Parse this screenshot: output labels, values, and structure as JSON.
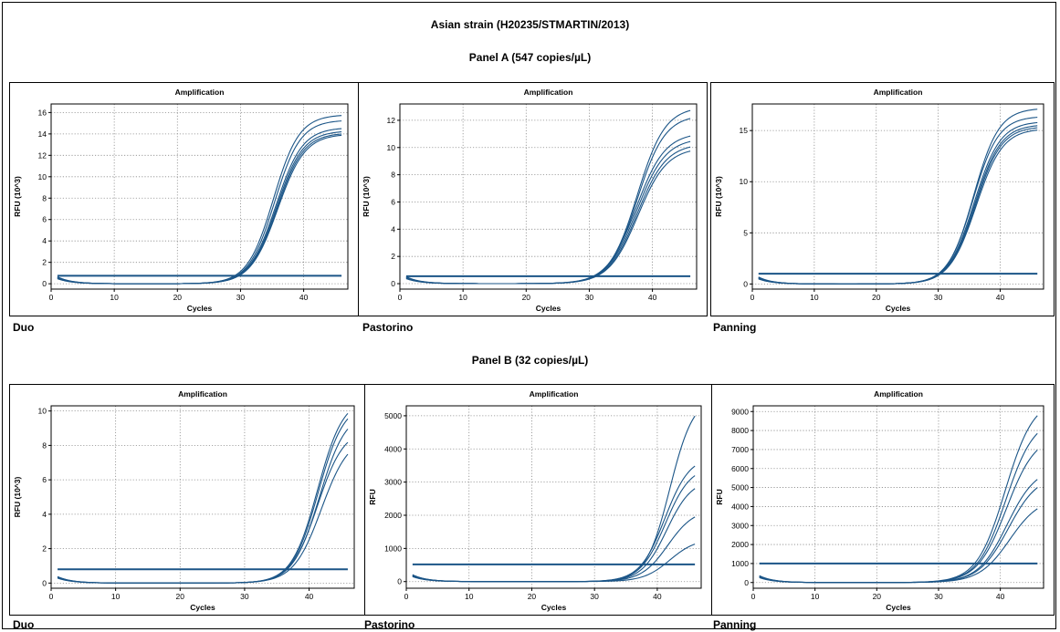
{
  "figure": {
    "title": "Asian strain (H20235/STMARTIN/2013)",
    "panel_a_title": "Panel A (547 copies/µL)",
    "panel_b_title": "Panel B (32 copies/µL)"
  },
  "chart_data": [
    {
      "type": "line",
      "panel": "A",
      "assay": "Duo",
      "title": "Amplification",
      "xlabel": "Cycles",
      "ylabel": "RFU (10^3)",
      "xlim": [
        0,
        47
      ],
      "ylim": [
        -0.5,
        16.8
      ],
      "xticks": [
        0,
        10,
        20,
        30,
        40
      ],
      "yticks": [
        0,
        2,
        4,
        6,
        8,
        10,
        12,
        14,
        16
      ],
      "grid": true,
      "threshold": 0.75,
      "curves": [
        {
          "plateau": 15.8,
          "midpoint": 35.2,
          "slope": 2.05
        },
        {
          "plateau": 15.3,
          "midpoint": 35.4,
          "slope": 2.05
        },
        {
          "plateau": 14.6,
          "midpoint": 35.6,
          "slope": 2.1
        },
        {
          "plateau": 14.3,
          "midpoint": 35.7,
          "slope": 2.1
        },
        {
          "plateau": 14.1,
          "midpoint": 35.8,
          "slope": 2.1
        },
        {
          "plateau": 14.0,
          "midpoint": 35.9,
          "slope": 2.15
        }
      ]
    },
    {
      "type": "line",
      "panel": "A",
      "assay": "Pastorino",
      "title": "Amplification",
      "xlabel": "Cycles",
      "ylabel": "RFU (10^3)",
      "xlim": [
        0,
        47
      ],
      "ylim": [
        -0.4,
        13.2
      ],
      "xticks": [
        0,
        10,
        20,
        30,
        40
      ],
      "yticks": [
        0,
        2,
        4,
        6,
        8,
        10,
        12
      ],
      "grid": true,
      "threshold": 0.55,
      "curves": [
        {
          "plateau": 13.0,
          "midpoint": 37.6,
          "slope": 2.2
        },
        {
          "plateau": 12.4,
          "midpoint": 37.6,
          "slope": 2.2
        },
        {
          "plateau": 11.1,
          "midpoint": 37.4,
          "slope": 2.3
        },
        {
          "plateau": 10.7,
          "midpoint": 37.5,
          "slope": 2.3
        },
        {
          "plateau": 10.3,
          "midpoint": 37.6,
          "slope": 2.3
        },
        {
          "plateau": 10.0,
          "midpoint": 37.7,
          "slope": 2.3
        }
      ]
    },
    {
      "type": "line",
      "panel": "A",
      "assay": "Panning",
      "title": "Amplification",
      "xlabel": "Cycles",
      "ylabel": "RFU (10^3)",
      "xlim": [
        0,
        47
      ],
      "ylim": [
        -0.5,
        17.6
      ],
      "xticks": [
        0,
        10,
        20,
        30,
        40
      ],
      "yticks": [
        0,
        5,
        10,
        15
      ],
      "grid": true,
      "threshold": 1.0,
      "curves": [
        {
          "plateau": 17.2,
          "midpoint": 35.7,
          "slope": 2.05
        },
        {
          "plateau": 16.4,
          "midpoint": 35.6,
          "slope": 2.05
        },
        {
          "plateau": 15.9,
          "midpoint": 35.8,
          "slope": 2.1
        },
        {
          "plateau": 15.6,
          "midpoint": 35.9,
          "slope": 2.1
        },
        {
          "plateau": 15.4,
          "midpoint": 36.0,
          "slope": 2.1
        },
        {
          "plateau": 15.2,
          "midpoint": 36.1,
          "slope": 2.15
        }
      ]
    },
    {
      "type": "line",
      "panel": "B",
      "assay": "Duo",
      "title": "Amplification",
      "xlabel": "Cycles",
      "ylabel": "RFU (10^3)",
      "xlim": [
        0,
        47
      ],
      "ylim": [
        -0.3,
        10.3
      ],
      "xticks": [
        0,
        10,
        20,
        30,
        40
      ],
      "yticks": [
        0,
        2,
        4,
        6,
        8,
        10
      ],
      "grid": true,
      "threshold": 0.8,
      "curves": [
        {
          "plateau": 10.8,
          "midpoint": 41.3,
          "slope": 2.0
        },
        {
          "plateau": 10.5,
          "midpoint": 41.4,
          "slope": 2.0
        },
        {
          "plateau": 10.0,
          "midpoint": 41.6,
          "slope": 2.05
        },
        {
          "plateau": 9.0,
          "midpoint": 41.3,
          "slope": 2.05
        },
        {
          "plateau": 8.6,
          "midpoint": 41.9,
          "slope": 2.15
        }
      ]
    },
    {
      "type": "line",
      "panel": "B",
      "assay": "Pastorino",
      "title": "Amplification",
      "xlabel": "Cycles",
      "ylabel": "RFU",
      "xlim": [
        0,
        47
      ],
      "ylim": [
        -200,
        5300
      ],
      "xticks": [
        0,
        10,
        20,
        30,
        40
      ],
      "yticks": [
        0,
        1000,
        2000,
        3000,
        4000,
        5000
      ],
      "grid": true,
      "threshold": 520,
      "curves": [
        {
          "plateau": 5600,
          "midpoint": 42.0,
          "slope": 1.9
        },
        {
          "plateau": 3800,
          "midpoint": 41.2,
          "slope": 2.0
        },
        {
          "plateau": 3500,
          "midpoint": 41.3,
          "slope": 2.0
        },
        {
          "plateau": 3100,
          "midpoint": 41.5,
          "slope": 2.0
        },
        {
          "plateau": 2200,
          "midpoint": 41.7,
          "slope": 2.1
        },
        {
          "plateau": 1300,
          "midpoint": 42.0,
          "slope": 2.1
        }
      ]
    },
    {
      "type": "line",
      "panel": "B",
      "assay": "Panning",
      "title": "Amplification",
      "xlabel": "Cycles",
      "ylabel": "RFU",
      "xlim": [
        0,
        47
      ],
      "ylim": [
        -300,
        9300
      ],
      "xticks": [
        0,
        10,
        20,
        30,
        40
      ],
      "yticks": [
        0,
        1000,
        2000,
        3000,
        4000,
        5000,
        6000,
        7000,
        8000,
        9000
      ],
      "grid": true,
      "threshold": 1000,
      "curves": [
        {
          "plateau": 9700,
          "midpoint": 40.8,
          "slope": 2.3
        },
        {
          "plateau": 8700,
          "midpoint": 40.9,
          "slope": 2.3
        },
        {
          "plateau": 7800,
          "midpoint": 41.0,
          "slope": 2.35
        },
        {
          "plateau": 6100,
          "midpoint": 41.1,
          "slope": 2.35
        },
        {
          "plateau": 5700,
          "midpoint": 41.3,
          "slope": 2.4
        },
        {
          "plateau": 4500,
          "midpoint": 41.5,
          "slope": 2.45
        }
      ]
    }
  ]
}
